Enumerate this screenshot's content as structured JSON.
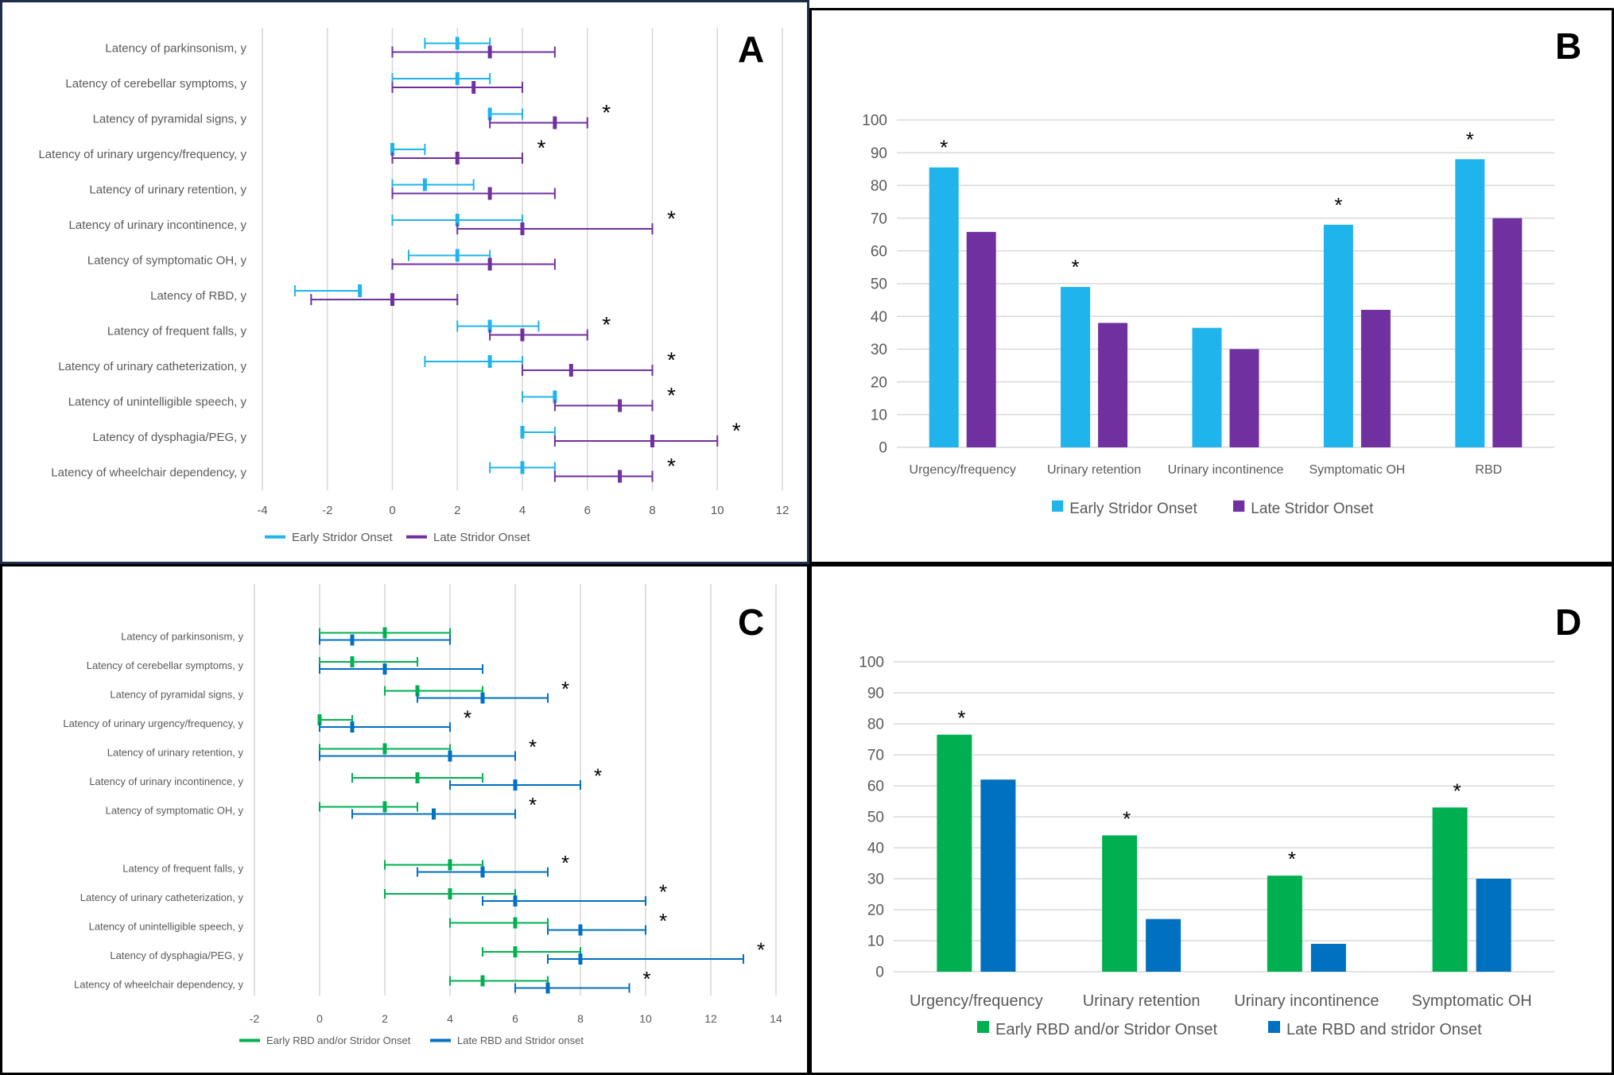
{
  "colors": {
    "early_stridor": "#1fb4ec",
    "late_stridor": "#7030a0",
    "early_rbd": "#00b050",
    "late_rbd": "#0070c0",
    "grid": "#d9d9d9",
    "axis_text": "#595959"
  },
  "chart_data": [
    {
      "panel": "A",
      "type": "forest",
      "orientation": "horizontal",
      "xlim": [
        -4,
        12
      ],
      "xticks": [
        -4,
        -2,
        0,
        2,
        4,
        6,
        8,
        10,
        12
      ],
      "legend": [
        "Early Stridor Onset",
        "Late Stridor Onset"
      ],
      "legend_position": "bottom",
      "rows": [
        {
          "label": "Latency of parkinsonism, y",
          "early": [
            1,
            2,
            3
          ],
          "late": [
            0,
            3,
            5
          ],
          "sig": false
        },
        {
          "label": "Latency of cerebellar symptoms, y",
          "early": [
            0,
            2,
            3
          ],
          "late": [
            0,
            2.5,
            4
          ],
          "sig": false
        },
        {
          "label": "Latency of pyramidal signs, y",
          "early": [
            3,
            3,
            4
          ],
          "late": [
            3,
            5,
            6
          ],
          "sig": true
        },
        {
          "label": "Latency of urinary urgency/frequency, y",
          "early": [
            0,
            0,
            1
          ],
          "late": [
            0,
            2,
            4
          ],
          "sig": true
        },
        {
          "label": "Latency of urinary retention, y",
          "early": [
            0,
            1,
            2.5
          ],
          "late": [
            0,
            3,
            5
          ],
          "sig": false
        },
        {
          "label": "Latency of urinary incontinence, y",
          "early": [
            0,
            2,
            4
          ],
          "late": [
            2,
            4,
            8
          ],
          "sig": true
        },
        {
          "label": "Latency of symptomatic OH, y",
          "early": [
            0.5,
            2,
            3
          ],
          "late": [
            0,
            3,
            5
          ],
          "sig": false
        },
        {
          "label": "Latency of RBD, y",
          "early": [
            -3,
            -1,
            -1
          ],
          "late": [
            -2.5,
            0,
            2
          ],
          "sig": false
        },
        {
          "label": "Latency of frequent falls, y",
          "early": [
            2,
            3,
            4.5
          ],
          "late": [
            3,
            4,
            6
          ],
          "sig": true
        },
        {
          "label": "Latency of urinary catheterization, y",
          "early": [
            1,
            3,
            4
          ],
          "late": [
            4,
            5.5,
            8
          ],
          "sig": true
        },
        {
          "label": "Latency of unintelligible speech, y",
          "early": [
            4,
            5,
            5
          ],
          "late": [
            5,
            7,
            8
          ],
          "sig": true
        },
        {
          "label": "Latency of dysphagia/PEG, y",
          "early": [
            4,
            4,
            5
          ],
          "late": [
            5,
            8,
            10
          ],
          "sig": true
        },
        {
          "label": "Latency of wheelchair dependency, y",
          "early": [
            3,
            4,
            5
          ],
          "late": [
            5,
            7,
            8
          ],
          "sig": true
        }
      ]
    },
    {
      "panel": "B",
      "type": "bar",
      "ylim": [
        0,
        100
      ],
      "yticks": [
        0,
        10,
        20,
        30,
        40,
        50,
        60,
        70,
        80,
        90,
        100
      ],
      "categories": [
        "Urgency/frequency",
        "Urinary retention",
        "Urinary incontinence",
        "Symptomatic OH",
        "RBD"
      ],
      "series": [
        {
          "name": "Early Stridor Onset",
          "values": [
            85.5,
            49,
            36.5,
            68,
            88
          ]
        },
        {
          "name": "Late Stridor Onset",
          "values": [
            65.8,
            38,
            30,
            42,
            70
          ]
        }
      ],
      "sig": [
        true,
        true,
        false,
        true,
        true
      ],
      "legend_position": "bottom"
    },
    {
      "panel": "C",
      "type": "forest",
      "orientation": "horizontal",
      "xlim": [
        -2,
        14
      ],
      "xticks": [
        -2,
        0,
        2,
        4,
        6,
        8,
        10,
        12,
        14
      ],
      "legend": [
        "Early RBD and/or Stridor Onset",
        "Late RBD and Stridor onset"
      ],
      "legend_position": "bottom",
      "rows": [
        {
          "label": "Latency of parkinsonism, y",
          "early": [
            0,
            2,
            4
          ],
          "late": [
            0,
            1,
            4
          ],
          "sig": false
        },
        {
          "label": "Latency of cerebellar symptoms, y",
          "early": [
            0,
            1,
            3
          ],
          "late": [
            0,
            2,
            5
          ],
          "sig": false
        },
        {
          "label": "Latency of pyramidal signs, y",
          "early": [
            2,
            3,
            5
          ],
          "late": [
            3,
            5,
            7
          ],
          "sig": true
        },
        {
          "label": "Latency of urinary urgency/frequency, y",
          "early": [
            0,
            0,
            1
          ],
          "late": [
            0,
            1,
            4
          ],
          "sig": true
        },
        {
          "label": "Latency of urinary retention, y",
          "early": [
            0,
            2,
            4
          ],
          "late": [
            0,
            4,
            6
          ],
          "sig": true
        },
        {
          "label": "Latency of urinary incontinence, y",
          "early": [
            1,
            3,
            5
          ],
          "late": [
            4,
            6,
            8
          ],
          "sig": true
        },
        {
          "label": "Latency of symptomatic OH, y",
          "early": [
            0,
            2,
            3
          ],
          "late": [
            1,
            3.5,
            6
          ],
          "sig": true
        },
        {
          "label": "",
          "early": null,
          "late": null,
          "sig": false
        },
        {
          "label": "Latency of frequent falls, y",
          "early": [
            2,
            4,
            5
          ],
          "late": [
            3,
            5,
            7
          ],
          "sig": true
        },
        {
          "label": "Latency of urinary catheterization, y",
          "early": [
            2,
            4,
            6
          ],
          "late": [
            5,
            6,
            10
          ],
          "sig": true
        },
        {
          "label": "Latency of unintelligible speech, y",
          "early": [
            4,
            6,
            7
          ],
          "late": [
            7,
            8,
            10
          ],
          "sig": true
        },
        {
          "label": "Latency of dysphagia/PEG, y",
          "early": [
            5,
            6,
            8
          ],
          "late": [
            7,
            8,
            13
          ],
          "sig": true
        },
        {
          "label": "Latency of wheelchair dependency, y",
          "early": [
            4,
            5,
            7
          ],
          "late": [
            6,
            7,
            9.5
          ],
          "sig": true
        }
      ]
    },
    {
      "panel": "D",
      "type": "bar",
      "ylim": [
        0,
        100
      ],
      "yticks": [
        0,
        10,
        20,
        30,
        40,
        50,
        60,
        70,
        80,
        90,
        100
      ],
      "categories": [
        "Urgency/frequency",
        "Urinary retention",
        "Urinary incontinence",
        "Symptomatic OH"
      ],
      "series": [
        {
          "name": "Early RBD and/or Stridor Onset",
          "values": [
            76.5,
            44,
            31,
            53
          ]
        },
        {
          "name": "Late RBD and stridor Onset",
          "values": [
            62,
            17,
            9,
            30
          ]
        }
      ],
      "sig": [
        true,
        true,
        true,
        true
      ],
      "legend_position": "bottom"
    }
  ],
  "panels": {
    "A": "A",
    "B": "B",
    "C": "C",
    "D": "D"
  },
  "star": "*"
}
